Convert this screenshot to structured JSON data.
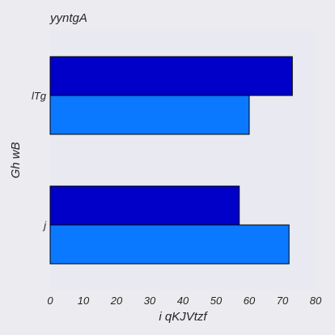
{
  "chart_data": {
    "type": "bar",
    "orientation": "horizontal",
    "title": "yyntgA",
    "xlabel": "i qKJVtzf",
    "ylabel": "Gh wB",
    "categories": [
      "lTg",
      "j"
    ],
    "series": [
      {
        "values": [
          73,
          57
        ],
        "color": "#0000c8"
      },
      {
        "values": [
          60,
          72
        ],
        "color": "#0a78ff"
      }
    ],
    "xlim": [
      0,
      80
    ],
    "xticks": [
      0,
      10,
      20,
      30,
      40,
      50,
      60,
      70,
      80
    ],
    "grid": false,
    "legend": "none"
  }
}
